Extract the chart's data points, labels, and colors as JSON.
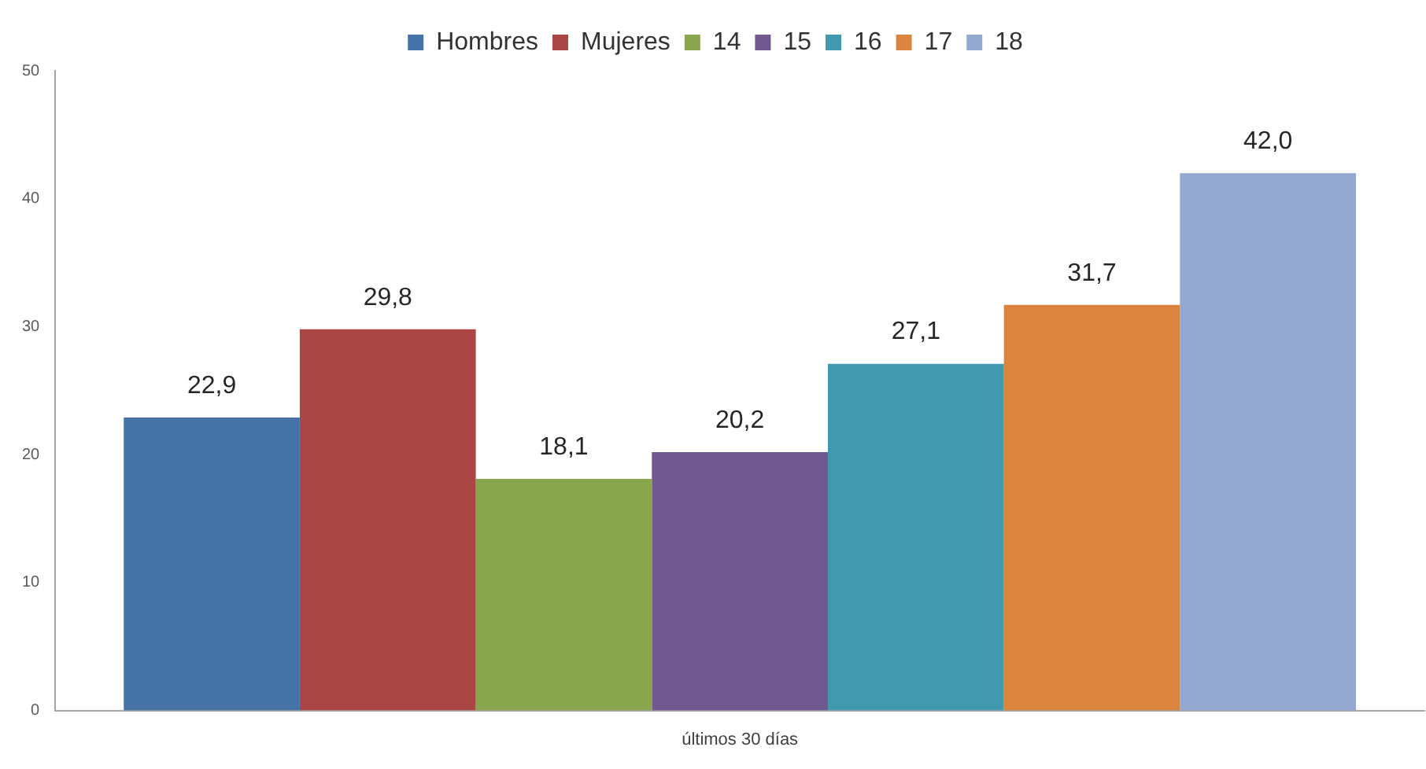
{
  "chart_data": {
    "type": "bar",
    "categories": [
      "últimos 30 días"
    ],
    "series": [
      {
        "name": "Hombres",
        "color": "#4572a7",
        "values": [
          22.9
        ],
        "value_labels": [
          "22,9"
        ]
      },
      {
        "name": "Mujeres",
        "color": "#aa4643",
        "values": [
          29.8
        ],
        "value_labels": [
          "29,8"
        ]
      },
      {
        "name": "14",
        "color": "#89a54e",
        "values": [
          18.1
        ],
        "value_labels": [
          "18,1"
        ]
      },
      {
        "name": "15",
        "color": "#71588f",
        "values": [
          20.2
        ],
        "value_labels": [
          "20,2"
        ]
      },
      {
        "name": "16",
        "color": "#4198af",
        "values": [
          27.1
        ],
        "value_labels": [
          "27,1"
        ]
      },
      {
        "name": "17",
        "color": "#db843d",
        "values": [
          31.7
        ],
        "value_labels": [
          "31,7"
        ]
      },
      {
        "name": "18",
        "color": "#93a9cf",
        "values": [
          42.0
        ],
        "value_labels": [
          "42,0"
        ]
      }
    ],
    "ylim": [
      0,
      50
    ],
    "yticks": [
      0,
      10,
      20,
      30,
      40,
      50
    ],
    "grid": false,
    "legend": "top"
  }
}
